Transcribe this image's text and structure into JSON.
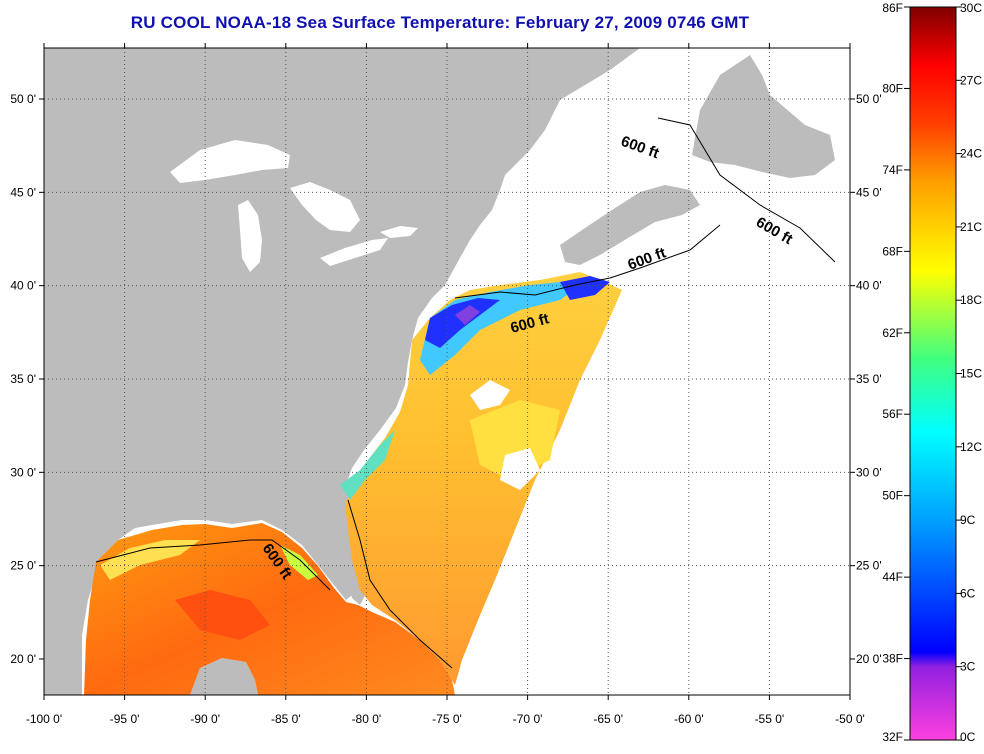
{
  "title": "RU COOL  NOAA-18  Sea Surface Temperature:  February 27, 2009 0746 GMT",
  "map": {
    "lon_ticks": [
      "-100 0'",
      "-95 0'",
      "-90 0'",
      "-85 0'",
      "-80 0'",
      "-75 0'",
      "-70 0'",
      "-65 0'",
      "-60 0'",
      "-55 0'",
      "-50 0'"
    ],
    "lat_ticks": [
      "50 0'",
      "45 0'",
      "40 0'",
      "35 0'",
      "30 0'",
      "25 0'",
      "20 0'"
    ],
    "contour_labels": [
      "600 ft",
      "600 ft",
      "600 ft",
      "600 ft",
      "600 ft"
    ],
    "colors": {
      "land": "#bcbcbc",
      "frame": "#000000",
      "grid": "#555555"
    }
  },
  "colorbar": {
    "fahrenheit": [
      "86F",
      "80F",
      "74F",
      "68F",
      "62F",
      "56F",
      "50F",
      "44F",
      "38F",
      "32F"
    ],
    "celsius": [
      "30C",
      "27C",
      "24C",
      "21C",
      "18C",
      "15C",
      "12C",
      "9C",
      "6C",
      "3C",
      "0C"
    ],
    "colors": [
      "#ff40e0",
      "#9020e0",
      "#0000ff",
      "#00a0ff",
      "#00ffff",
      "#40ff80",
      "#ffff00",
      "#ffa000",
      "#ff4000",
      "#ff0000",
      "#800000"
    ]
  }
}
